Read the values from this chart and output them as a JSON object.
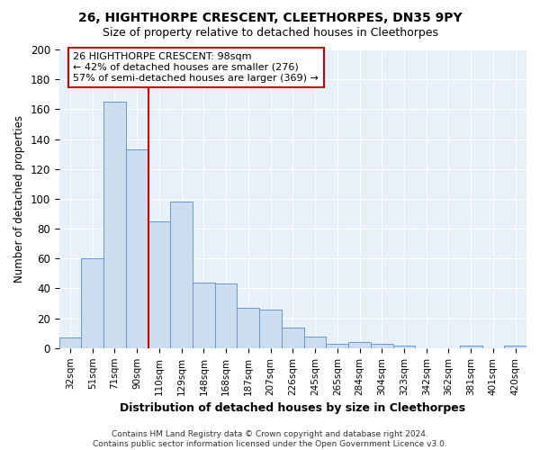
{
  "title1": "26, HIGHTHORPE CRESCENT, CLEETHORPES, DN35 9PY",
  "title2": "Size of property relative to detached houses in Cleethorpes",
  "xlabel": "Distribution of detached houses by size in Cleethorpes",
  "ylabel": "Number of detached properties",
  "categories": [
    "32sqm",
    "51sqm",
    "71sqm",
    "90sqm",
    "110sqm",
    "129sqm",
    "148sqm",
    "168sqm",
    "187sqm",
    "207sqm",
    "226sqm",
    "245sqm",
    "265sqm",
    "284sqm",
    "304sqm",
    "323sqm",
    "342sqm",
    "362sqm",
    "381sqm",
    "401sqm",
    "420sqm"
  ],
  "values": [
    7,
    60,
    165,
    133,
    85,
    98,
    44,
    43,
    27,
    26,
    14,
    8,
    3,
    4,
    3,
    2,
    0,
    0,
    2,
    0,
    2
  ],
  "bar_color": "#ccddf0",
  "bar_edge_color": "#6699cc",
  "vline_x": 3.5,
  "vline_color": "#cc0000",
  "annotation_text": "26 HIGHTHORPE CRESCENT: 98sqm\n← 42% of detached houses are smaller (276)\n57% of semi-detached houses are larger (369) →",
  "annotation_box_color": "#ffffff",
  "annotation_box_edge": "#cc0000",
  "footer": "Contains HM Land Registry data © Crown copyright and database right 2024.\nContains public sector information licensed under the Open Government Licence v3.0.",
  "bg_color": "#ffffff",
  "plot_bg_color": "#e8f0fa",
  "ylim": [
    0,
    200
  ],
  "yticks": [
    0,
    20,
    40,
    60,
    80,
    100,
    120,
    140,
    160,
    180,
    200
  ]
}
